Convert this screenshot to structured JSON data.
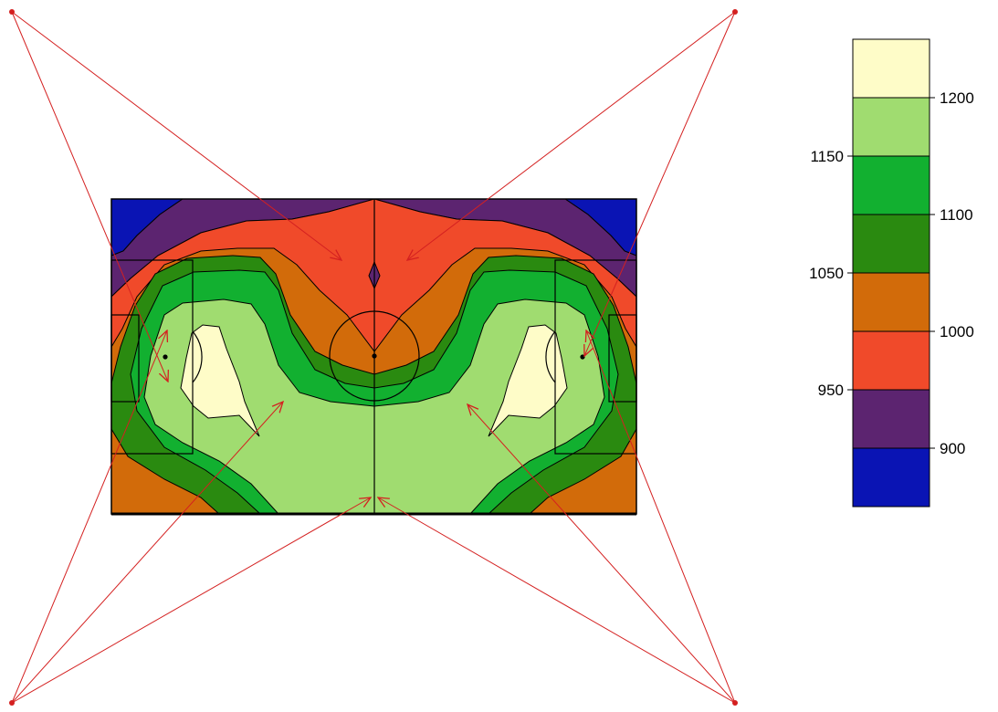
{
  "colors": {
    "band_below_900": "#0a14b4",
    "band_900_950": "#5c2470",
    "band_950_1000": "#f04a2a",
    "band_1000_1050": "#d26b0a",
    "band_1050_1100": "#2a8a10",
    "band_1100_1150": "#12b030",
    "band_1150_1200": "#a0dc70",
    "band_above_1200": "#fefcc8",
    "light_ray": "#d42020",
    "pitch_lines": "#000000"
  },
  "legend": {
    "bands": [
      "#fefcc8",
      "#a0dc70",
      "#12b030",
      "#2a8a10",
      "#d26b0a",
      "#f04a2a",
      "#5c2470",
      "#0a14b4"
    ],
    "right_ticks": [
      "1200",
      "1100",
      "1000",
      "900"
    ],
    "left_ticks": [
      "1150",
      "1050",
      "950"
    ]
  },
  "light_sources": [
    "top-left",
    "top-right",
    "bottom-left",
    "bottom-right"
  ]
}
